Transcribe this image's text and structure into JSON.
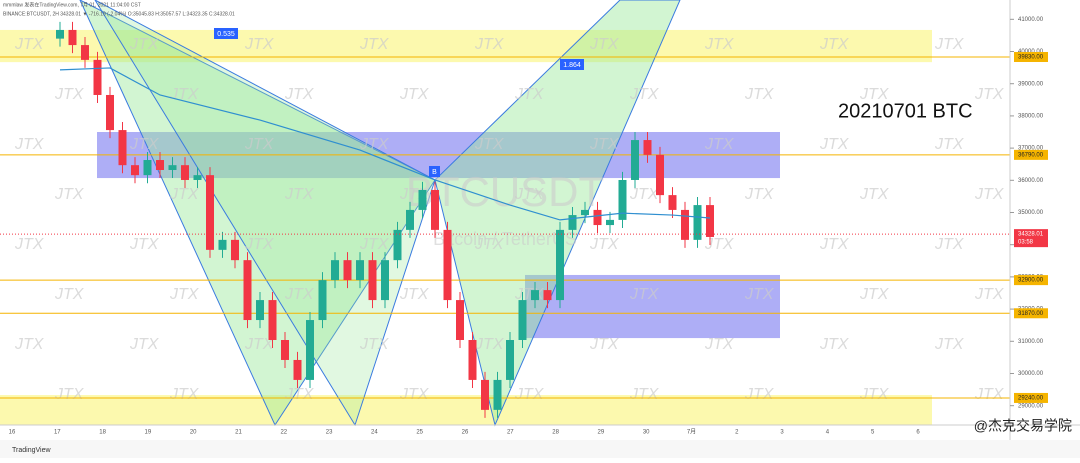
{
  "header": {
    "publisher": "mmmlaw 发表在TradingView.com, 7月 01, 2021 11:04:00 CST",
    "symbol": "BINANCE:BTCUSDT, 2H 34328.01 ▼ -716.19 (-2.04%) O:35045.83 H:35057.57 L:34323.35 C:34328.01"
  },
  "chart_data": {
    "type": "candlestick",
    "title": "20210701 BTC",
    "watermark": "BTCUSDT",
    "sub_watermark": "Bitcoin / TetherUS",
    "brand_watermark": "JTX",
    "categories": [
      "16",
      "17",
      "18",
      "19",
      "20",
      "21",
      "22",
      "23",
      "24",
      "25",
      "26",
      "27",
      "28",
      "29",
      "30",
      "7月",
      "2",
      "3",
      "4",
      "5",
      "6"
    ],
    "open": [
      40400,
      40670,
      40200,
      39740,
      38650,
      37560,
      36470,
      36160,
      36630,
      36320,
      36470,
      36010,
      36160,
      33840,
      34150,
      33520,
      31660,
      32280,
      31040,
      30420,
      29800,
      31660,
      32900,
      33520,
      32900,
      33520,
      32280,
      33520,
      34460,
      35080,
      35700,
      34460,
      32280,
      31040,
      29800,
      28870,
      29800,
      31040,
      32280,
      32590,
      32280,
      34460,
      34920,
      35080,
      34610,
      34770,
      36010,
      37250,
      36790,
      35540,
      35080,
      34150,
      35230
    ],
    "high": [
      40920,
      40920,
      40450,
      39990,
      38900,
      37810,
      36720,
      36880,
      36880,
      36720,
      36720,
      36410,
      36410,
      34400,
      34400,
      33770,
      32530,
      32530,
      31290,
      30670,
      31910,
      33150,
      33770,
      33770,
      33770,
      33770,
      33770,
      34710,
      35330,
      35950,
      35950,
      34710,
      32530,
      31290,
      30050,
      30050,
      31290,
      32530,
      32840,
      32840,
      34710,
      35170,
      35330,
      35330,
      35020,
      36260,
      37500,
      37500,
      37040,
      35790,
      35330,
      35480,
      35480
    ],
    "low": [
      40150,
      39950,
      39490,
      38400,
      37310,
      36220,
      35910,
      35910,
      36070,
      36070,
      35760,
      35760,
      33590,
      33590,
      33270,
      31410,
      31410,
      30790,
      30170,
      29550,
      29550,
      31410,
      32650,
      32650,
      32650,
      32030,
      32030,
      33270,
      34210,
      34830,
      34210,
      32030,
      30790,
      29550,
      28620,
      28620,
      29550,
      30790,
      32030,
      32030,
      32030,
      34210,
      34670,
      34360,
      34360,
      34520,
      35760,
      36540,
      35290,
      34830,
      33900,
      33900,
      33990
    ],
    "close": [
      40670,
      40200,
      39740,
      38650,
      37560,
      36470,
      36160,
      36630,
      36320,
      36470,
      36010,
      36160,
      33840,
      34150,
      33520,
      31660,
      32280,
      31040,
      30420,
      29800,
      31660,
      32900,
      33520,
      32900,
      33520,
      32280,
      33520,
      34460,
      35080,
      35700,
      34460,
      32280,
      31040,
      29800,
      28870,
      29800,
      31040,
      32280,
      32590,
      32280,
      34460,
      34920,
      35080,
      34610,
      34770,
      36010,
      37250,
      36790,
      35540,
      35080,
      34150,
      35230,
      34240
    ],
    "up_color": "#22ab94",
    "down_color": "#f23645",
    "ma": {
      "color": "#2f8fd0",
      "index": [
        0,
        4,
        8,
        16,
        24,
        30,
        36,
        40,
        45,
        49,
        52
      ],
      "values": [
        39430,
        39490,
        38650,
        37870,
        36940,
        36010,
        35230,
        34770,
        34980,
        34920,
        34830
      ]
    },
    "ylim": [
      28400,
      41600
    ],
    "yticks": [
      {
        "value": 29000,
        "label": "29000.00"
      },
      {
        "value": 30000,
        "label": "30000.00"
      },
      {
        "value": 31000,
        "label": "31000.00"
      },
      {
        "value": 32000,
        "label": "32000.00"
      },
      {
        "value": 33000,
        "label": "33000.00"
      },
      {
        "value": 34000,
        "label": "34000.00"
      },
      {
        "value": 35000,
        "label": "35000.00"
      },
      {
        "value": 36000,
        "label": "36000.00"
      },
      {
        "value": 37000,
        "label": "37000.00"
      },
      {
        "value": 38000,
        "label": "38000.00"
      },
      {
        "value": 39000,
        "label": "39000.00"
      },
      {
        "value": 40000,
        "label": "40000.00"
      },
      {
        "value": 41000,
        "label": "41000.00"
      }
    ],
    "levels": [
      {
        "value": 39830,
        "label": "39830.00"
      },
      {
        "value": 36790,
        "label": "36790.00"
      },
      {
        "value": 32900,
        "label": "32900.00"
      },
      {
        "value": 31870,
        "label": "31870.00"
      },
      {
        "value": 29240,
        "label": "29240.00"
      }
    ],
    "level_color": "#f5b400",
    "zones": [
      {
        "top": 40670,
        "bottom": 39670,
        "color": "#fbf79a"
      },
      {
        "top": 37500,
        "bottom": 36070,
        "color": "#8c8cf2"
      },
      {
        "top": 33060,
        "bottom": 31100,
        "color": "#8c8cf2"
      },
      {
        "top": 29330,
        "bottom": 28400,
        "color": "#fbf79a"
      }
    ],
    "last_price": {
      "value": 34328.01,
      "label": "34328.01"
    },
    "countdown": "03:58",
    "pattern_labels": [
      "0.535",
      "B",
      "1.864"
    ],
    "footer_left": "TradingView",
    "footer_right": "@杰克交易学院"
  }
}
